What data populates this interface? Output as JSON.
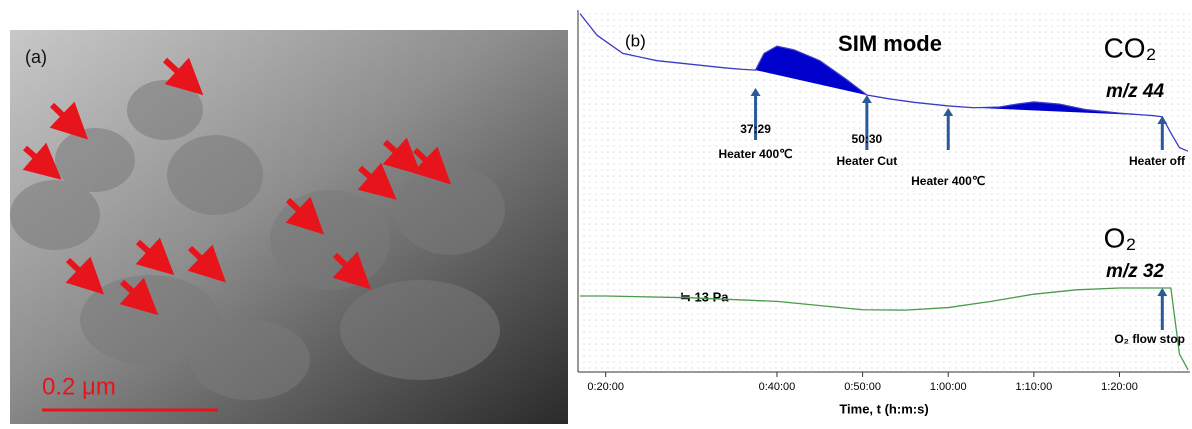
{
  "image": {
    "label": "(a)",
    "scale_bar": "0.2 μm"
  },
  "chart_data": {
    "type": "line",
    "label": "(b)",
    "title": "SIM mode",
    "x_label": "Time, t (h:m:s)",
    "xlim": [
      17,
      88
    ],
    "ylim": [
      0,
      100
    ],
    "xticks": [
      {
        "value": 20,
        "label": "0:20:00"
      },
      {
        "value": 40,
        "label": "0:40:00"
      },
      {
        "value": 50,
        "label": "0:50:00"
      },
      {
        "value": 60,
        "label": "1:00:00"
      },
      {
        "value": 70,
        "label": "1:10:00"
      },
      {
        "value": 80,
        "label": "1:20:00"
      }
    ],
    "series": [
      {
        "name": "CO₂",
        "subtitle": "m/z 44",
        "color": "#3b3bc8",
        "fill": "#0000cc",
        "x": [
          17,
          19,
          22,
          26,
          30,
          34,
          36,
          37.5,
          38.5,
          40,
          42,
          45,
          48,
          50.5,
          53,
          56,
          60,
          63,
          66,
          68,
          70,
          73,
          76,
          80,
          84,
          85,
          86,
          87,
          88
        ],
        "values": [
          99,
          93,
          88,
          86,
          85,
          84,
          83.6,
          83.4,
          88,
          90,
          89,
          86,
          81,
          76.5,
          75.5,
          74.5,
          73.5,
          73,
          73.2,
          74,
          74.6,
          74,
          72.5,
          71.5,
          70.8,
          70.5,
          66,
          62,
          61
        ]
      },
      {
        "name": "O₂",
        "subtitle": "m/z 32",
        "color": "#4a9a4a",
        "x": [
          17,
          20,
          30,
          40,
          50,
          55,
          60,
          65,
          70,
          75,
          80,
          85,
          86,
          87,
          88
        ],
        "values": [
          21,
          21,
          20.5,
          19.5,
          17.2,
          17.1,
          17.8,
          19.5,
          21.5,
          22.7,
          23.2,
          23.2,
          23.2,
          5,
          0.6
        ]
      }
    ],
    "annotations": [
      {
        "x": 37.5,
        "lines": [
          "37:29",
          "Heater  400℃"
        ]
      },
      {
        "x": 50.5,
        "lines": [
          "50:30",
          "Heater Cut"
        ]
      },
      {
        "x": 60,
        "lines": [
          "Heater  400℃"
        ]
      },
      {
        "x": 85,
        "lines": [
          "Heater off"
        ]
      },
      {
        "x": 85,
        "lines": [
          "O₂ flow stop"
        ]
      }
    ],
    "pressure_note": "≒  13 Pa"
  }
}
